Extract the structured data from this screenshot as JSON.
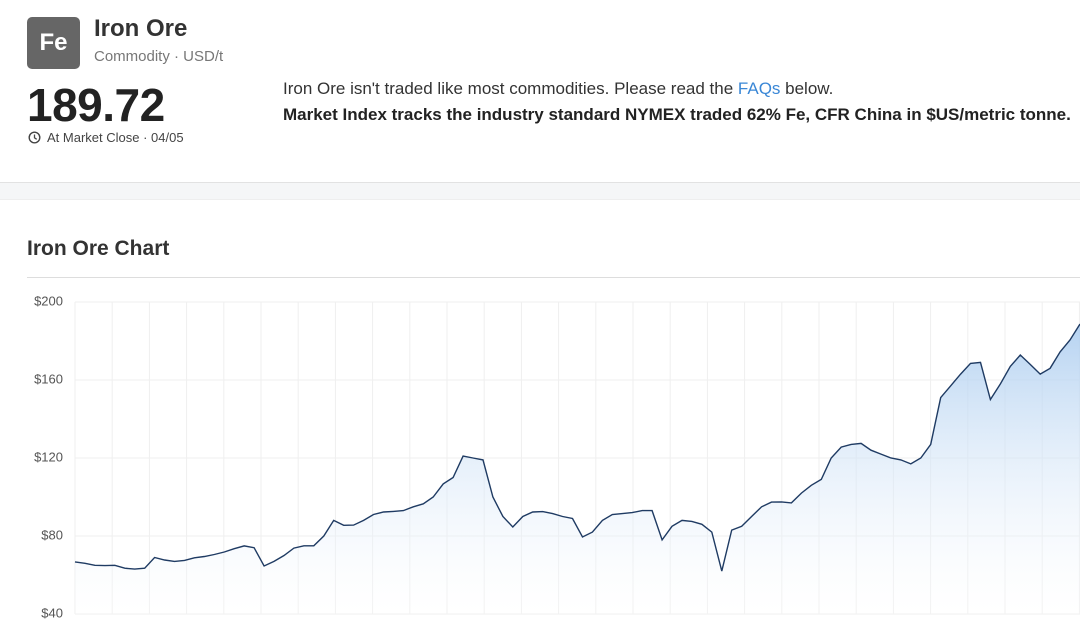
{
  "header": {
    "symbol": "Fe",
    "name": "Iron Ore",
    "meta": "Commodity · USD/t",
    "price": "189.72",
    "status": "At Market Close · 04/05",
    "description": {
      "before_link": "Iron Ore isn't traded like most commodities. Please read the ",
      "link": "FAQs",
      "after_link": " below.",
      "bold": "Market Index tracks the industry standard NYMEX traded 62% Fe, CFR China in $US/metric tonne."
    }
  },
  "chart_data": {
    "type": "area",
    "title": "Iron Ore Chart",
    "color": "#1f3b63",
    "grid": true,
    "ylim": [
      40,
      200
    ],
    "yticks": [
      {
        "value": 40,
        "label": "$40"
      },
      {
        "value": 80,
        "label": "$80"
      },
      {
        "value": 120,
        "label": "$120"
      },
      {
        "value": 160,
        "label": "$160"
      },
      {
        "value": 200,
        "label": "$200"
      }
    ],
    "values": [
      66.7,
      66,
      65,
      64.8,
      65,
      63.5,
      63,
      63.5,
      69,
      67.7,
      67,
      67.5,
      68.8,
      69.5,
      70.5,
      71.8,
      73.5,
      74.9,
      74,
      64.6,
      67,
      70,
      73.8,
      75,
      75,
      80,
      88,
      85.5,
      85.6,
      88,
      91,
      92.3,
      92.6,
      93,
      95,
      96.5,
      100,
      106.7,
      110,
      121,
      120,
      119,
      100,
      90,
      84.6,
      90,
      92.3,
      92.5,
      91.5,
      90,
      89,
      79.5,
      82,
      88,
      91,
      91.5,
      92,
      93,
      93,
      78,
      85,
      88,
      87.5,
      86,
      82,
      62,
      83,
      85,
      90,
      95,
      97.4,
      97.5,
      97,
      102,
      106,
      109,
      120,
      125.6,
      127,
      127.5,
      124,
      122,
      120,
      119,
      117,
      120,
      127,
      151,
      157,
      163,
      168.5,
      169,
      150,
      158,
      167,
      172.8,
      168,
      163,
      166,
      174.4,
      180.5,
      188.7
    ]
  }
}
